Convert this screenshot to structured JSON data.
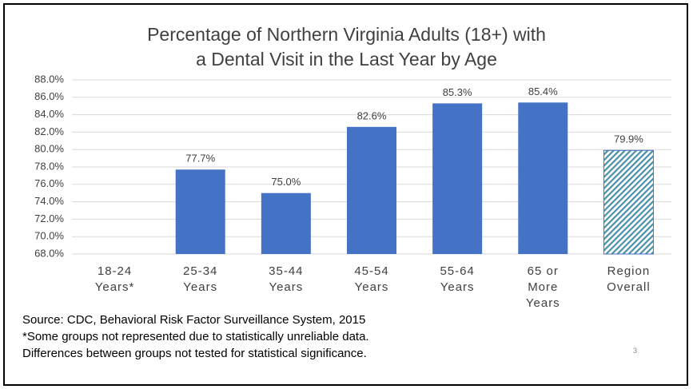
{
  "chart_data": {
    "type": "bar",
    "title": "Percentage of Northern Virginia Adults (18+) with\na Dental Visit in the Last Year by Age",
    "categories": [
      "18-24\nYears*",
      "25-34\nYears",
      "35-44\nYears",
      "45-54\nYears",
      "55-64\nYears",
      "65 or\nMore\nYears",
      "Region\nOverall"
    ],
    "values": [
      null,
      77.7,
      75.0,
      82.6,
      85.3,
      85.4,
      79.9
    ],
    "value_labels": [
      null,
      "77.7%",
      "75.0%",
      "82.6%",
      "85.3%",
      "85.4%",
      "79.9%"
    ],
    "bar_styles": [
      "solid",
      "solid",
      "solid",
      "solid",
      "solid",
      "solid",
      "hatched"
    ],
    "color": "#4472c4",
    "ylim": [
      68,
      88
    ],
    "yticks": [
      {
        "value": 68,
        "label": "68.0%"
      },
      {
        "value": 70,
        "label": "70.0%"
      },
      {
        "value": 72,
        "label": "72.0%"
      },
      {
        "value": 74,
        "label": "74.0%"
      },
      {
        "value": 76,
        "label": "76.0%"
      },
      {
        "value": 78,
        "label": "78.0%"
      },
      {
        "value": 80,
        "label": "80.0%"
      },
      {
        "value": 82,
        "label": "82.0%"
      },
      {
        "value": 84,
        "label": "84.0%"
      },
      {
        "value": 86,
        "label": "86.0%"
      },
      {
        "value": 88,
        "label": "88.0%"
      }
    ],
    "grid": true,
    "footnotes": [
      "Source: CDC, Behavioral Risk Factor Surveillance System, 2015",
      "*Some groups not represented due to statistically unreliable data.",
      "Differences between groups not tested for statistical significance."
    ],
    "page_number": "3"
  }
}
